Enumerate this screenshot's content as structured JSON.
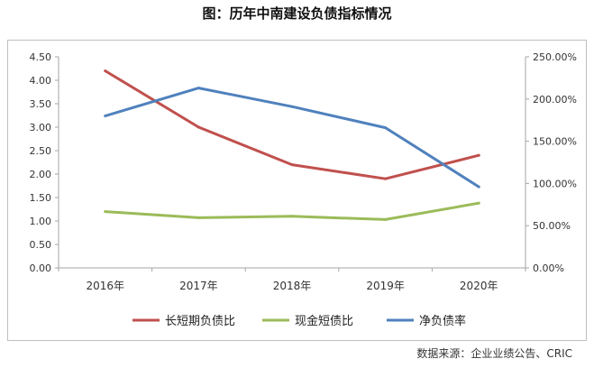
{
  "title": "图：历年中南建设负债指标情况",
  "source": "数据来源：企业业绩公告、CRIC",
  "chart_data": {
    "type": "line",
    "title": "图：历年中南建设负债指标情况",
    "categories": [
      "2016年",
      "2017年",
      "2018年",
      "2019年",
      "2020年"
    ],
    "left_axis": {
      "ylim": [
        0,
        4.5
      ],
      "ticks": [
        "0.00",
        "0.50",
        "1.00",
        "1.50",
        "2.00",
        "2.50",
        "3.00",
        "3.50",
        "4.00",
        "4.50"
      ]
    },
    "right_axis": {
      "ylim": [
        0,
        250
      ],
      "ticks": [
        "0.00%",
        "50.00%",
        "100.00%",
        "150.00%",
        "200.00%",
        "250.00%"
      ]
    },
    "series": [
      {
        "name": "长短期负债比",
        "axis": "left",
        "color": "#c0504d",
        "values": [
          4.2,
          3.0,
          2.2,
          1.9,
          2.4
        ]
      },
      {
        "name": "现金短债比",
        "axis": "left",
        "color": "#9bbb59",
        "values": [
          1.2,
          1.07,
          1.1,
          1.03,
          1.38
        ]
      },
      {
        "name": "净负债率",
        "axis": "right",
        "color": "#4f81bd",
        "values": [
          180,
          213,
          191,
          166,
          96
        ]
      }
    ],
    "grid": false,
    "legend_position": "bottom"
  }
}
